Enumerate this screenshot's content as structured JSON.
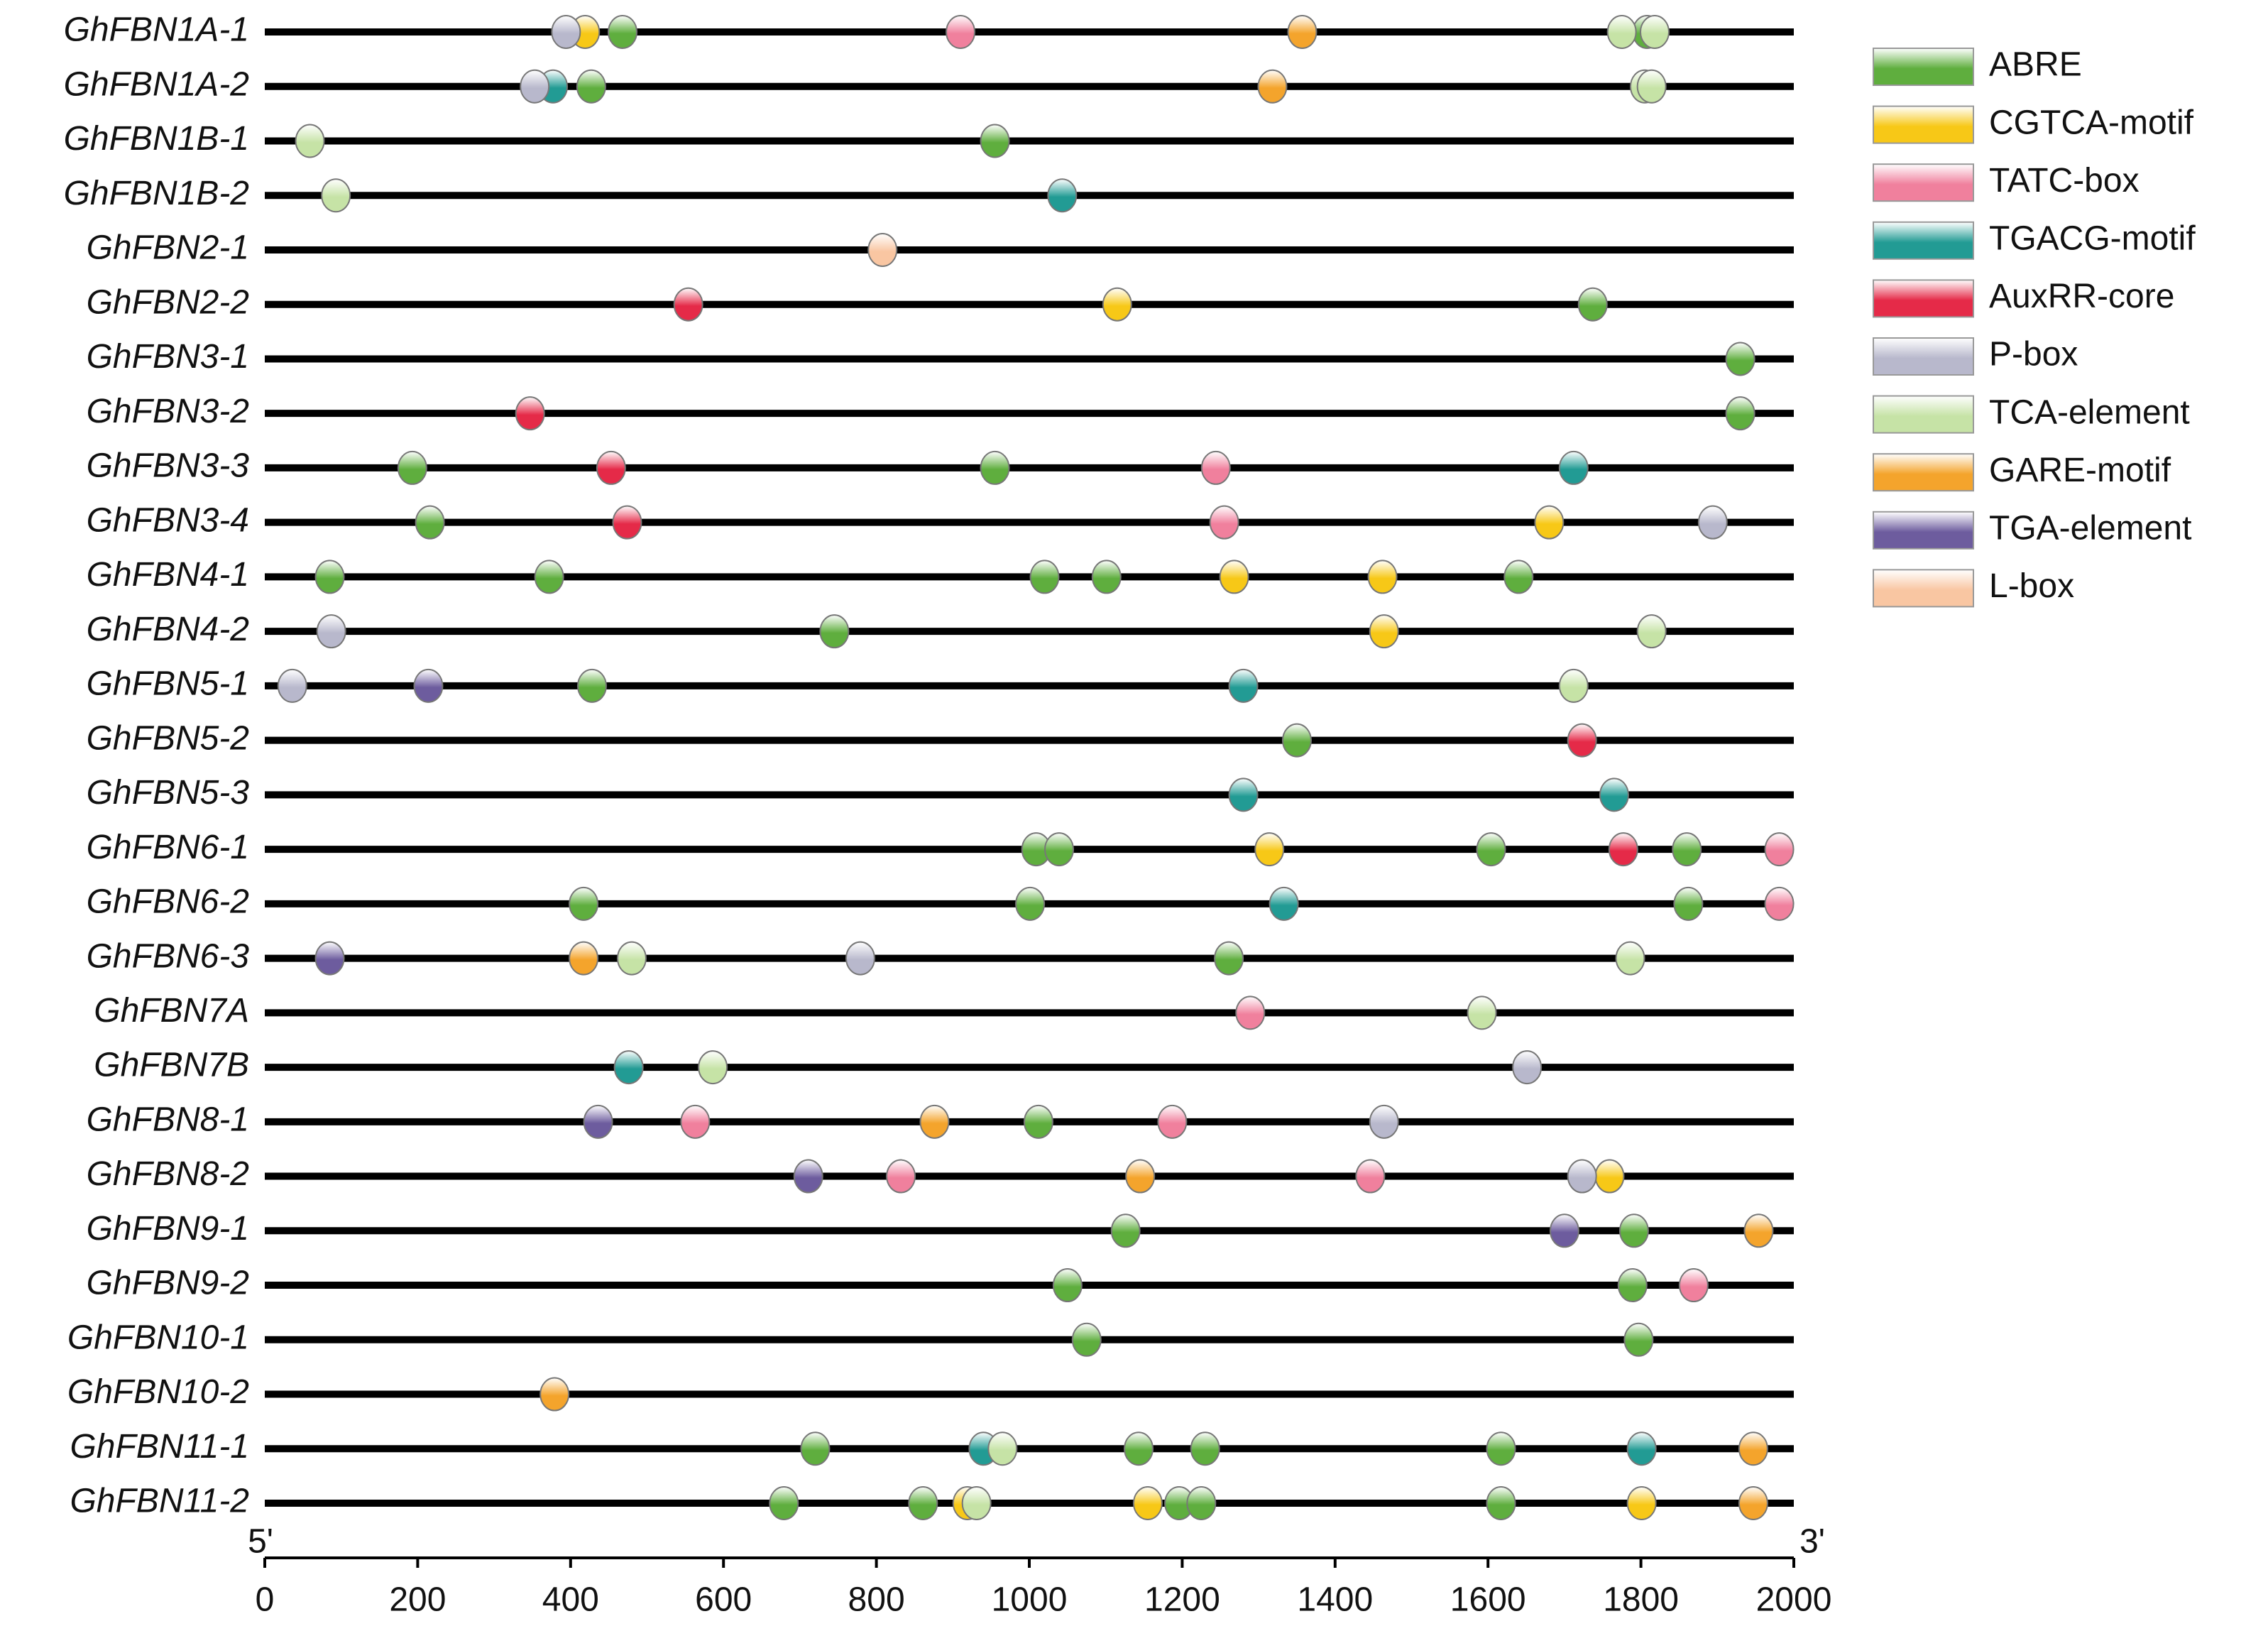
{
  "chart_data": {
    "type": "promoter",
    "categories": [
      "GhFBN1A-1",
      "GhFBN1A-2",
      "GhFBN1B-1",
      "GhFBN1B-2",
      "GhFBN2-1",
      "GhFBN2-2",
      "GhFBN3-1",
      "GhFBN3-2",
      "GhFBN3-3",
      "GhFBN3-4",
      "GhFBN4-1",
      "GhFBN4-2",
      "GhFBN5-1",
      "GhFBN5-2",
      "GhFBN5-3",
      "GhFBN6-1",
      "GhFBN6-2",
      "GhFBN6-3",
      "GhFBN7A",
      "GhFBN7B",
      "GhFBN8-1",
      "GhFBN8-2",
      "GhFBN9-1",
      "GhFBN9-2",
      "GhFBN10-1",
      "GhFBN10-2",
      "GhFBN11-1",
      "GhFBN11-2"
    ],
    "start_label": "5'",
    "end_label": "3'",
    "xlim": [
      0,
      2000
    ],
    "xticks": [
      0,
      200,
      400,
      600,
      800,
      1000,
      1200,
      1400,
      1600,
      1800,
      2000
    ],
    "series": [
      {
        "name": "ABRE",
        "color": "#5fae3e",
        "category": [
          "GhFBN1A-1",
          "GhFBN1A-1",
          "GhFBN1A-2",
          "GhFBN1B-1",
          "GhFBN2-2",
          "GhFBN3-1",
          "GhFBN3-2",
          "GhFBN3-3",
          "GhFBN3-3",
          "GhFBN3-4",
          "GhFBN4-1",
          "GhFBN4-1",
          "GhFBN4-1",
          "GhFBN4-1",
          "GhFBN4-1",
          "GhFBN4-2",
          "GhFBN5-1",
          "GhFBN5-2",
          "GhFBN6-1",
          "GhFBN6-1",
          "GhFBN6-1",
          "GhFBN6-1",
          "GhFBN6-2",
          "GhFBN6-2",
          "GhFBN6-2",
          "GhFBN6-3",
          "GhFBN8-1",
          "GhFBN9-1",
          "GhFBN9-1",
          "GhFBN9-2",
          "GhFBN9-2",
          "GhFBN10-1",
          "GhFBN10-1",
          "GhFBN11-1",
          "GhFBN11-1",
          "GhFBN11-1",
          "GhFBN11-1",
          "GhFBN11-2",
          "GhFBN11-2",
          "GhFBN11-2",
          "GhFBN11-2",
          "GhFBN11-2"
        ],
        "x": [
          468,
          1808,
          427,
          955,
          1737,
          1930,
          1930,
          193,
          955,
          216,
          85,
          372,
          1020,
          1101,
          1640,
          745,
          428,
          1350,
          1009,
          1039,
          1604,
          1860,
          417,
          1001,
          1862,
          1261,
          1012,
          1126,
          1791,
          1050,
          1789,
          1075,
          1797,
          720,
          1143,
          1230,
          1617,
          679,
          861,
          1196,
          1225,
          1617
        ]
      },
      {
        "name": "CGTCA-motif",
        "color": "#f7c817",
        "category": [
          "GhFBN1A-1",
          "GhFBN2-2",
          "GhFBN3-4",
          "GhFBN4-1",
          "GhFBN4-1",
          "GhFBN4-2",
          "GhFBN6-1",
          "GhFBN8-2",
          "GhFBN11-2",
          "GhFBN11-2",
          "GhFBN11-2"
        ],
        "x": [
          419,
          1115,
          1680,
          1268,
          1462,
          1464,
          1314,
          1759,
          919,
          1155,
          1801
        ]
      },
      {
        "name": "TATC-box",
        "color": "#f0809d",
        "category": [
          "GhFBN1A-1",
          "GhFBN3-3",
          "GhFBN3-4",
          "GhFBN6-1",
          "GhFBN6-2",
          "GhFBN7A",
          "GhFBN8-1",
          "GhFBN8-1",
          "GhFBN8-2",
          "GhFBN8-2",
          "GhFBN9-2"
        ],
        "x": [
          910,
          1244,
          1255,
          1981,
          1981,
          1289,
          563,
          1187,
          832,
          1446,
          1869
        ]
      },
      {
        "name": "TGACG-motif",
        "color": "#229b94",
        "category": [
          "GhFBN1A-2",
          "GhFBN1B-2",
          "GhFBN3-3",
          "GhFBN5-1",
          "GhFBN5-3",
          "GhFBN5-3",
          "GhFBN6-2",
          "GhFBN7B",
          "GhFBN11-1",
          "GhFBN11-1"
        ],
        "x": [
          377,
          1043,
          1712,
          1280,
          1280,
          1765,
          1333,
          476,
          940,
          1801
        ]
      },
      {
        "name": "AuxRR-core",
        "color": "#e52a48",
        "category": [
          "GhFBN2-2",
          "GhFBN3-2",
          "GhFBN3-3",
          "GhFBN3-4",
          "GhFBN5-2",
          "GhFBN6-1"
        ],
        "x": [
          554,
          347,
          453,
          474,
          1723,
          1777
        ]
      },
      {
        "name": "P-box",
        "color": "#b8b8cc",
        "category": [
          "GhFBN1A-1",
          "GhFBN1A-2",
          "GhFBN3-4",
          "GhFBN4-2",
          "GhFBN5-1",
          "GhFBN6-3",
          "GhFBN7B",
          "GhFBN8-1",
          "GhFBN8-2"
        ],
        "x": [
          394,
          353,
          1894,
          87,
          36,
          779,
          1651,
          1464,
          1723
        ]
      },
      {
        "name": "TCA-element",
        "color": "#c6e3a6",
        "category": [
          "GhFBN1A-1",
          "GhFBN1A-1",
          "GhFBN1A-2",
          "GhFBN1A-2",
          "GhFBN1B-1",
          "GhFBN1B-2",
          "GhFBN4-2",
          "GhFBN5-1",
          "GhFBN6-3",
          "GhFBN6-3",
          "GhFBN7A",
          "GhFBN7B",
          "GhFBN11-1",
          "GhFBN11-2"
        ],
        "x": [
          1775,
          1818,
          1805,
          1814,
          59,
          93,
          1814,
          1712,
          480,
          1786,
          1592,
          586,
          965,
          931
        ]
      },
      {
        "name": "GARE-motif",
        "color": "#f4a42c",
        "category": [
          "GhFBN1A-1",
          "GhFBN1A-2",
          "GhFBN6-3",
          "GhFBN8-1",
          "GhFBN8-2",
          "GhFBN9-1",
          "GhFBN10-2",
          "GhFBN11-1",
          "GhFBN11-2"
        ],
        "x": [
          1357,
          1318,
          417,
          876,
          1145,
          1954,
          379,
          1947,
          1947
        ]
      },
      {
        "name": "TGA-element",
        "color": "#6d5c9e",
        "category": [
          "GhFBN5-1",
          "GhFBN6-3",
          "GhFBN8-1",
          "GhFBN8-2",
          "GhFBN9-1"
        ],
        "x": [
          214,
          85,
          436,
          711,
          1700
        ]
      },
      {
        "name": "L-box",
        "color": "#f9c6a2",
        "category": [
          "GhFBN2-1"
        ],
        "x": [
          808
        ]
      }
    ]
  }
}
